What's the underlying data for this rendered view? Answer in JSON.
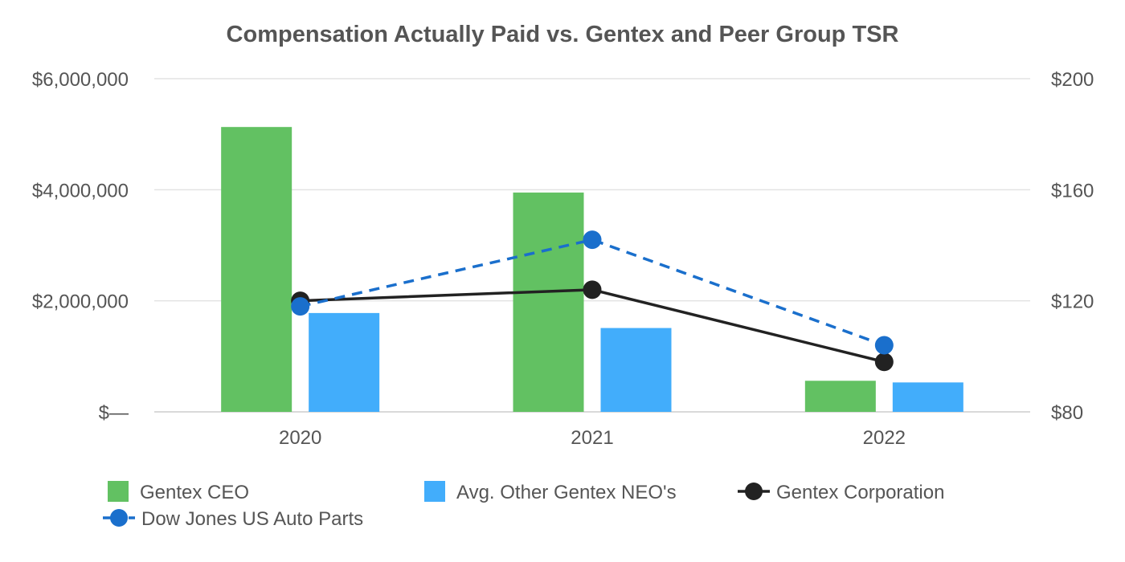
{
  "chart_data": {
    "type": "bar",
    "title": "Compensation Actually Paid vs. Gentex and Peer Group TSR",
    "categories": [
      "2020",
      "2021",
      "2022"
    ],
    "y_left": {
      "ylim": [
        0,
        6000000
      ],
      "ticks": [
        0,
        2000000,
        4000000,
        6000000
      ],
      "tick_labels": [
        "$—",
        "$2,000,000",
        "$4,000,000",
        "$6,000,000"
      ]
    },
    "y_right": {
      "ylim": [
        80,
        200
      ],
      "ticks": [
        80,
        120,
        160,
        200
      ],
      "tick_labels": [
        "$80",
        "$120",
        "$160",
        "$200"
      ]
    },
    "grid": true,
    "legend_position": "bottom",
    "bar_series": [
      {
        "name": "Gentex CEO",
        "color": "#62c162",
        "values": [
          5130000,
          3950000,
          560000
        ],
        "axis": "left"
      },
      {
        "name": "Avg. Other Gentex NEO's",
        "color": "#42adfb",
        "values": [
          1780000,
          1510000,
          530000
        ],
        "axis": "left"
      }
    ],
    "line_series": [
      {
        "name": "Gentex Corporation",
        "color": "#222222",
        "style": "solid",
        "values": [
          120,
          124,
          98
        ],
        "axis": "right"
      },
      {
        "name": "Dow Jones US Auto Parts",
        "color": "#1a6fcc",
        "style": "dashed",
        "values": [
          118,
          142,
          104
        ],
        "axis": "right"
      }
    ],
    "legend": [
      {
        "label": "Gentex CEO",
        "kind": "bar",
        "color": "#62c162"
      },
      {
        "label": "Avg. Other Gentex NEO's",
        "kind": "bar",
        "color": "#42adfb"
      },
      {
        "label": "Gentex Corporation",
        "kind": "line",
        "style": "solid",
        "color": "#222222"
      },
      {
        "label": "Dow Jones US Auto Parts",
        "kind": "line",
        "style": "dashed",
        "color": "#1a6fcc"
      }
    ]
  }
}
